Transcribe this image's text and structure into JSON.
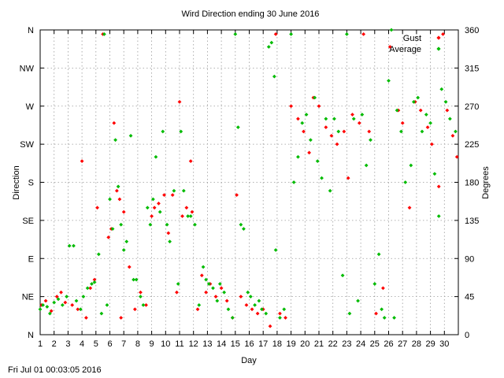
{
  "chart_data": {
    "type": "scatter",
    "title": "Wird Direction ending 30 June 2016",
    "xlabel": "Day",
    "ylabel": "Direction",
    "y2label": "Degrees",
    "xlim": [
      1,
      31
    ],
    "ylim": [
      0,
      360
    ],
    "x_ticks": [
      1,
      2,
      3,
      4,
      5,
      6,
      7,
      8,
      9,
      10,
      11,
      12,
      13,
      14,
      15,
      16,
      17,
      18,
      19,
      20,
      21,
      22,
      23,
      24,
      25,
      26,
      27,
      28,
      29,
      30
    ],
    "y_ticks": [
      {
        "value": 0,
        "label": "N"
      },
      {
        "value": 45,
        "label": "NE"
      },
      {
        "value": 90,
        "label": "E"
      },
      {
        "value": 135,
        "label": "SE"
      },
      {
        "value": 180,
        "label": "S"
      },
      {
        "value": 225,
        "label": "SW"
      },
      {
        "value": 270,
        "label": "W"
      },
      {
        "value": 315,
        "label": "NW"
      },
      {
        "value": 360,
        "label": "N"
      }
    ],
    "y2_ticks": [
      0,
      45,
      90,
      135,
      180,
      225,
      270,
      315,
      360
    ],
    "grid": true,
    "legend": "top-right",
    "series": [
      {
        "name": "Gust",
        "color": "#ff0000",
        "points": [
          [
            1.1,
            35
          ],
          [
            1.4,
            40
          ],
          [
            1.8,
            28
          ],
          [
            2.2,
            45
          ],
          [
            2.5,
            50
          ],
          [
            2.8,
            38
          ],
          [
            3.3,
            35
          ],
          [
            3.7,
            30
          ],
          [
            4.0,
            205
          ],
          [
            4.3,
            20
          ],
          [
            4.6,
            55
          ],
          [
            4.9,
            65
          ],
          [
            5.1,
            150
          ],
          [
            5.5,
            355
          ],
          [
            5.9,
            115
          ],
          [
            6.1,
            125
          ],
          [
            6.3,
            250
          ],
          [
            6.5,
            170
          ],
          [
            6.7,
            160
          ],
          [
            6.8,
            20
          ],
          [
            7.0,
            145
          ],
          [
            7.4,
            80
          ],
          [
            7.8,
            30
          ],
          [
            8.2,
            50
          ],
          [
            8.6,
            35
          ],
          [
            9.0,
            140
          ],
          [
            9.2,
            150
          ],
          [
            9.5,
            155
          ],
          [
            9.9,
            165
          ],
          [
            10.2,
            120
          ],
          [
            10.5,
            165
          ],
          [
            10.8,
            50
          ],
          [
            11.0,
            275
          ],
          [
            11.2,
            140
          ],
          [
            11.5,
            150
          ],
          [
            11.8,
            205
          ],
          [
            11.9,
            145
          ],
          [
            12.3,
            30
          ],
          [
            12.6,
            70
          ],
          [
            12.9,
            50
          ],
          [
            13.2,
            60
          ],
          [
            13.6,
            45
          ],
          [
            14.0,
            55
          ],
          [
            14.4,
            40
          ],
          [
            14.8,
            20
          ],
          [
            15.1,
            165
          ],
          [
            15.4,
            45
          ],
          [
            15.8,
            35
          ],
          [
            16.2,
            30
          ],
          [
            16.6,
            25
          ],
          [
            17.0,
            30
          ],
          [
            17.5,
            10
          ],
          [
            17.9,
            355
          ],
          [
            18.2,
            25
          ],
          [
            18.6,
            20
          ],
          [
            19.0,
            270
          ],
          [
            19.5,
            255
          ],
          [
            19.9,
            240
          ],
          [
            20.3,
            215
          ],
          [
            20.6,
            280
          ],
          [
            21.0,
            270
          ],
          [
            21.5,
            245
          ],
          [
            21.9,
            235
          ],
          [
            22.3,
            225
          ],
          [
            22.8,
            240
          ],
          [
            23.1,
            185
          ],
          [
            23.4,
            260
          ],
          [
            23.9,
            250
          ],
          [
            24.2,
            355
          ],
          [
            24.6,
            240
          ],
          [
            25.1,
            25
          ],
          [
            25.6,
            55
          ],
          [
            26.1,
            340
          ],
          [
            26.7,
            265
          ],
          [
            27.0,
            250
          ],
          [
            27.5,
            150
          ],
          [
            27.9,
            275
          ],
          [
            28.3,
            265
          ],
          [
            28.8,
            245
          ],
          [
            29.1,
            225
          ],
          [
            29.6,
            175
          ],
          [
            29.9,
            355
          ],
          [
            30.2,
            265
          ],
          [
            30.6,
            235
          ],
          [
            30.9,
            210
          ]
        ]
      },
      {
        "name": "Average",
        "color": "#00bb00",
        "points": [
          [
            1.0,
            30
          ],
          [
            1.2,
            35
          ],
          [
            1.5,
            33
          ],
          [
            1.7,
            25
          ],
          [
            2.0,
            38
          ],
          [
            2.3,
            42
          ],
          [
            2.6,
            35
          ],
          [
            2.9,
            45
          ],
          [
            3.1,
            105
          ],
          [
            3.4,
            105
          ],
          [
            3.6,
            40
          ],
          [
            3.9,
            30
          ],
          [
            4.1,
            45
          ],
          [
            4.4,
            55
          ],
          [
            4.7,
            60
          ],
          [
            4.9,
            62
          ],
          [
            5.2,
            95
          ],
          [
            5.4,
            25
          ],
          [
            5.6,
            355
          ],
          [
            5.8,
            35
          ],
          [
            6.0,
            160
          ],
          [
            6.2,
            125
          ],
          [
            6.4,
            230
          ],
          [
            6.6,
            175
          ],
          [
            6.8,
            130
          ],
          [
            7.0,
            100
          ],
          [
            7.2,
            110
          ],
          [
            7.5,
            235
          ],
          [
            7.7,
            65
          ],
          [
            7.9,
            65
          ],
          [
            8.2,
            45
          ],
          [
            8.4,
            35
          ],
          [
            8.7,
            150
          ],
          [
            8.9,
            130
          ],
          [
            9.1,
            160
          ],
          [
            9.3,
            210
          ],
          [
            9.6,
            145
          ],
          [
            9.8,
            240
          ],
          [
            10.1,
            130
          ],
          [
            10.3,
            110
          ],
          [
            10.6,
            170
          ],
          [
            10.9,
            60
          ],
          [
            11.1,
            240
          ],
          [
            11.3,
            170
          ],
          [
            11.6,
            140
          ],
          [
            11.8,
            140
          ],
          [
            12.1,
            130
          ],
          [
            12.4,
            35
          ],
          [
            12.7,
            80
          ],
          [
            12.9,
            65
          ],
          [
            13.1,
            60
          ],
          [
            13.4,
            55
          ],
          [
            13.7,
            40
          ],
          [
            13.9,
            60
          ],
          [
            14.2,
            50
          ],
          [
            14.5,
            30
          ],
          [
            14.8,
            20
          ],
          [
            15.0,
            355
          ],
          [
            15.2,
            245
          ],
          [
            15.4,
            130
          ],
          [
            15.6,
            125
          ],
          [
            15.9,
            50
          ],
          [
            16.1,
            45
          ],
          [
            16.4,
            35
          ],
          [
            16.7,
            40
          ],
          [
            16.9,
            30
          ],
          [
            17.2,
            25
          ],
          [
            17.4,
            340
          ],
          [
            17.6,
            345
          ],
          [
            17.8,
            305
          ],
          [
            17.9,
            100
          ],
          [
            18.2,
            20
          ],
          [
            18.5,
            30
          ],
          [
            19.0,
            355
          ],
          [
            19.2,
            180
          ],
          [
            19.5,
            210
          ],
          [
            19.8,
            250
          ],
          [
            20.1,
            260
          ],
          [
            20.4,
            230
          ],
          [
            20.7,
            280
          ],
          [
            20.9,
            205
          ],
          [
            21.2,
            185
          ],
          [
            21.5,
            255
          ],
          [
            21.8,
            170
          ],
          [
            22.1,
            255
          ],
          [
            22.4,
            240
          ],
          [
            22.7,
            70
          ],
          [
            23.0,
            355
          ],
          [
            23.2,
            25
          ],
          [
            23.5,
            255
          ],
          [
            23.8,
            40
          ],
          [
            24.1,
            260
          ],
          [
            24.4,
            200
          ],
          [
            24.7,
            230
          ],
          [
            25.0,
            60
          ],
          [
            25.3,
            95
          ],
          [
            25.5,
            30
          ],
          [
            25.7,
            20
          ],
          [
            26.0,
            300
          ],
          [
            26.2,
            360
          ],
          [
            26.4,
            20
          ],
          [
            26.6,
            265
          ],
          [
            26.9,
            240
          ],
          [
            27.2,
            180
          ],
          [
            27.6,
            200
          ],
          [
            27.8,
            275
          ],
          [
            28.1,
            280
          ],
          [
            28.4,
            240
          ],
          [
            28.7,
            260
          ],
          [
            29.0,
            250
          ],
          [
            29.3,
            190
          ],
          [
            29.6,
            140
          ],
          [
            29.8,
            290
          ],
          [
            30.1,
            275
          ],
          [
            30.4,
            255
          ],
          [
            30.8,
            240
          ]
        ]
      }
    ]
  },
  "footer": {
    "timestamp": "Fri Jul 01 00:03:05 2016"
  }
}
